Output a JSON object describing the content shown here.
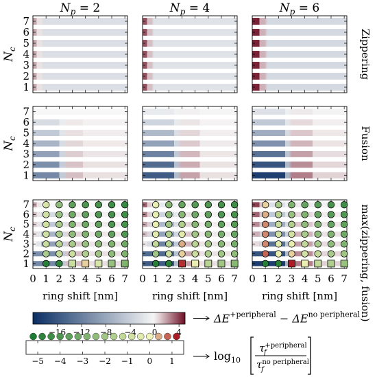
{
  "chart_data": {
    "type": "heatmap",
    "panel_grid": {
      "rows": 3,
      "cols": 3
    },
    "column_titles": [
      {
        "base": "N",
        "sub": "p",
        "rest": " = 2"
      },
      {
        "base": "N",
        "sub": "p",
        "rest": " = 4"
      },
      {
        "base": "N",
        "sub": "p",
        "rest": " = 6"
      }
    ],
    "row_titles": [
      "Zippering",
      "Fusion",
      "max(zippering, fusion)"
    ],
    "ylabel": {
      "base": "N",
      "sub": "c"
    },
    "y_ticks": [
      1,
      2,
      3,
      4,
      5,
      6,
      7
    ],
    "x_ticks": [
      0,
      1,
      2,
      3,
      4,
      5,
      6,
      7
    ],
    "xlabel": "ring shift [nm]",
    "xlim": [
      0,
      7.2
    ],
    "ylim": [
      0.5,
      7.5
    ],
    "energy_colorbar": {
      "range": [
        -20,
        5
      ],
      "ticks": [
        -16,
        -12,
        -8,
        -4,
        0,
        4
      ],
      "tick_labels": [
        "−16",
        "−12",
        "−8",
        "−4",
        "0",
        "4"
      ],
      "colors": [
        "#0b2f63",
        "#f7f7f7",
        "#6e0f24"
      ],
      "label": {
        "prefix": "ΔE",
        "sup1": "+peripheral",
        "mid": " − ΔE",
        "sup2": "no peripheral"
      }
    },
    "rate_colorbar": {
      "ticks": [
        -5,
        -4,
        -3,
        -2,
        -1,
        0,
        1
      ],
      "tick_labels": [
        "−5",
        "−4",
        "−3",
        "−2",
        "−1",
        "0",
        "1"
      ],
      "dot_values": [
        -5.2,
        -4.8,
        -4.4,
        -4.0,
        -3.6,
        -3.2,
        -2.8,
        -2.4,
        -2.0,
        -1.6,
        -1.2,
        -0.8,
        -0.4,
        0.0,
        0.4,
        0.8,
        1.2
      ],
      "colors": [
        "#1f7a33",
        "#f1f4b8",
        "#ad1c24"
      ],
      "label": {
        "fn": "log",
        "sub": "10",
        "num": "τ",
        "num_sub": "f",
        "num_sup": "+peripheral",
        "den": "τ",
        "den_sub": "f",
        "den_sup": "no peripheral"
      }
    },
    "energy_panels": {
      "zippering": [
        {
          "Np": 2,
          "bands": [
            {
              "x": 0,
              "w": 0.3,
              "v": 1.8
            },
            {
              "x": 0.3,
              "w": 0.35,
              "v": 0.5
            },
            {
              "x": 0.8,
              "w": 6.4,
              "v": -2.5
            }
          ],
          "strength_by_Nc": [
            0.95,
            0.95,
            0.95,
            0.95,
            0.95,
            0.95,
            0.95
          ]
        },
        {
          "Np": 4,
          "bands": [
            {
              "x": 0,
              "w": 0.35,
              "v": 3.6
            },
            {
              "x": 0.35,
              "w": 0.35,
              "v": 1.2
            },
            {
              "x": 0.85,
              "w": 6.35,
              "v": -2.0
            }
          ],
          "strength_by_Nc": [
            1,
            1,
            1,
            1,
            1,
            1,
            1
          ]
        },
        {
          "Np": 6,
          "bands": [
            {
              "x": 0,
              "w": 0.55,
              "v": 4.6
            },
            {
              "x": 0.55,
              "w": 0.4,
              "v": 1.5
            },
            {
              "x": 1.15,
              "w": 6.05,
              "v": -3.0
            }
          ],
          "strength_by_Nc": [
            1,
            1,
            1,
            1,
            1,
            1,
            1
          ]
        }
      ],
      "fusion": [
        {
          "Np": 2,
          "bands": [
            {
              "x": 0,
              "w": 2.0,
              "v": -11.0
            },
            {
              "x": 2.0,
              "w": 0.4,
              "v": -4.5
            },
            {
              "x": 2.6,
              "w": 1.2,
              "v": 1.2
            },
            {
              "x": 3.8,
              "w": 3.4,
              "v": 0.5
            }
          ],
          "strength_by_Nc": [
            1.0,
            0.95,
            0.78,
            0.6,
            0.42,
            0.25,
            0.0
          ]
        },
        {
          "Np": 4,
          "bands": [
            {
              "x": 0,
              "w": 2.4,
              "v": -15.5
            },
            {
              "x": 2.4,
              "w": 0.3,
              "v": -6.0
            },
            {
              "x": 2.95,
              "w": 1.4,
              "v": 1.8
            },
            {
              "x": 4.35,
              "w": 2.85,
              "v": 0.5
            }
          ],
          "strength_by_Nc": [
            1.0,
            0.9,
            0.75,
            0.55,
            0.4,
            0.22,
            0.08
          ]
        },
        {
          "Np": 6,
          "bands": [
            {
              "x": 0,
              "w": 2.5,
              "v": -18.5
            },
            {
              "x": 2.5,
              "w": 0.3,
              "v": -7.0
            },
            {
              "x": 3.0,
              "w": 1.6,
              "v": 2.6
            },
            {
              "x": 4.6,
              "w": 2.6,
              "v": 0.8
            }
          ],
          "strength_by_Nc": [
            1.0,
            0.88,
            0.72,
            0.55,
            0.4,
            0.25,
            0.12
          ]
        }
      ]
    },
    "markers": {
      "x": [
        1,
        2,
        3,
        4,
        5,
        6,
        7
      ],
      "Np2": [
        {
          "Nc": 1,
          "values": [
            -5.0,
            -4.8,
            -1.0,
            0.2,
            -0.6,
            -2.2,
            -2.8
          ],
          "square_from_x": 3
        },
        {
          "Nc": 2,
          "values": [
            -1.8,
            -1.2,
            -1.0,
            -1.6,
            -2.0,
            -2.4,
            -2.8
          ]
        },
        {
          "Nc": 3,
          "values": [
            -1.0,
            -1.4,
            -1.8,
            -2.2,
            -2.6,
            -2.8,
            -3.2
          ]
        },
        {
          "Nc": 4,
          "values": [
            -0.8,
            -1.8,
            -2.4,
            -2.8,
            -3.2,
            -3.6,
            -4.0
          ]
        },
        {
          "Nc": 5,
          "values": [
            -0.8,
            -1.8,
            -2.8,
            -3.2,
            -3.6,
            -4.0,
            -4.2
          ]
        },
        {
          "Nc": 6,
          "values": [
            -0.8,
            -2.2,
            -3.2,
            -3.6,
            -4.0,
            -4.2,
            -4.4
          ]
        },
        {
          "Nc": 7,
          "values": [
            -0.6,
            -2.4,
            -3.6,
            -4.0,
            -4.2,
            -4.4,
            -4.6
          ]
        }
      ],
      "Np4": [
        {
          "Nc": 1,
          "values": [
            -5.0,
            -5.0,
            1.1,
            -0.2,
            -1.4,
            -2.0,
            -2.6
          ],
          "square_from_x": 3
        },
        {
          "Nc": 2,
          "values": [
            -2.0,
            -1.0,
            0.2,
            -1.0,
            -1.6,
            -2.0,
            -2.4
          ]
        },
        {
          "Nc": 3,
          "values": [
            -1.2,
            -1.4,
            0.4,
            -1.4,
            -2.0,
            -2.6,
            -3.0
          ]
        },
        {
          "Nc": 4,
          "values": [
            -0.4,
            -1.6,
            -0.4,
            -2.0,
            -2.6,
            -3.0,
            -3.4
          ]
        },
        {
          "Nc": 5,
          "values": [
            -0.2,
            -2.0,
            -1.6,
            -2.6,
            -3.0,
            -3.6,
            -3.8
          ]
        },
        {
          "Nc": 6,
          "values": [
            -0.2,
            -2.4,
            -2.6,
            -3.2,
            -3.6,
            -4.0,
            -4.2
          ]
        },
        {
          "Nc": 7,
          "values": [
            -0.2,
            -2.6,
            -3.4,
            -3.8,
            -4.0,
            -4.2,
            -4.4
          ]
        }
      ],
      "Np6": [
        {
          "Nc": 1,
          "values": [
            -5.0,
            -5.0,
            1.2,
            -0.2,
            -1.2,
            -1.6,
            -2.2
          ],
          "square_from_x": 3
        },
        {
          "Nc": 2,
          "values": [
            0.8,
            -0.2,
            0.2,
            -0.8,
            -1.2,
            -1.8,
            -2.0
          ]
        },
        {
          "Nc": 3,
          "values": [
            0.6,
            -0.4,
            -0.2,
            -1.2,
            -1.8,
            -2.4,
            -2.8
          ]
        },
        {
          "Nc": 4,
          "values": [
            0.6,
            -0.8,
            -0.8,
            -1.8,
            -2.4,
            -2.8,
            -3.2
          ]
        },
        {
          "Nc": 5,
          "values": [
            0.6,
            -1.0,
            -1.6,
            -2.4,
            -2.8,
            -3.4,
            -3.6
          ]
        },
        {
          "Nc": 6,
          "values": [
            0.4,
            -1.4,
            -2.2,
            -2.8,
            -3.4,
            -3.8,
            -4.0
          ]
        },
        {
          "Nc": 7,
          "values": [
            0.2,
            -1.8,
            -2.8,
            -3.4,
            -3.8,
            -4.2,
            -4.4
          ]
        }
      ]
    }
  }
}
